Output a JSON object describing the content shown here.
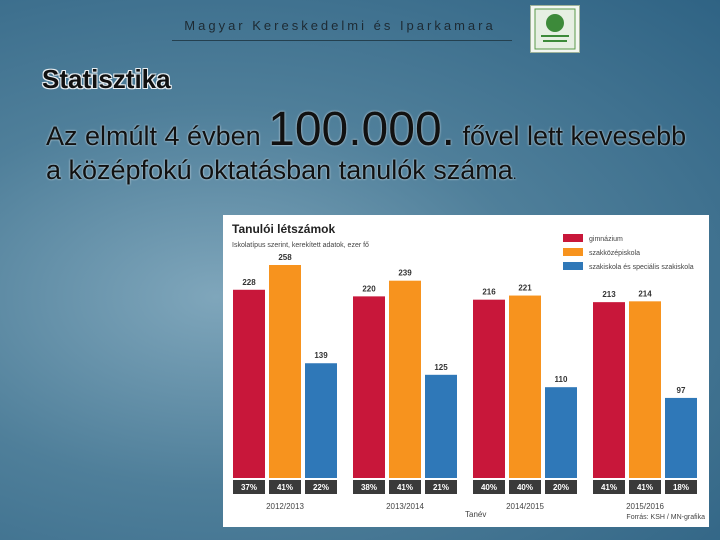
{
  "header": {
    "organization": "Magyar Kereskedelmi és Iparkamara",
    "section": "Statisztika"
  },
  "body": [
    "Az elmúlt 4 évben ",
    "100.000.",
    " fővel lett kevesebb a középfokú oktatásban tanulók száma",
    "."
  ],
  "chart_data": {
    "type": "bar",
    "title": "Tanulói létszámok",
    "subtitle": "Iskolatípus szerint, kerekített adatok, ezer fő",
    "x_label": "Tanév",
    "source": "Forrás: KSH / MN-grafika",
    "categories": [
      "2012/2013",
      "2013/2014",
      "2014/2015",
      "2015/2016"
    ],
    "series": [
      {
        "name": "gimnázium",
        "color": "#c8173a",
        "values": [
          228,
          220,
          216,
          213
        ],
        "share_values": [
          37,
          38,
          40,
          41
        ],
        "share_labels": [
          "37%",
          "38%",
          "40%",
          "41%"
        ]
      },
      {
        "name": "szakközépiskola",
        "color": "#f7931e",
        "values": [
          258,
          239,
          221,
          214
        ],
        "share_values": [
          41,
          41,
          40,
          41
        ],
        "share_labels": [
          "41%",
          "41%",
          "40%",
          "41%"
        ]
      },
      {
        "name": "szakiskola és speciális szakiskola",
        "color": "#2f78b8",
        "values": [
          139,
          125,
          110,
          97
        ],
        "share_values": [
          22,
          21,
          20,
          18
        ],
        "share_labels": [
          "22%",
          "21%",
          "20%",
          "18%"
        ]
      }
    ]
  }
}
